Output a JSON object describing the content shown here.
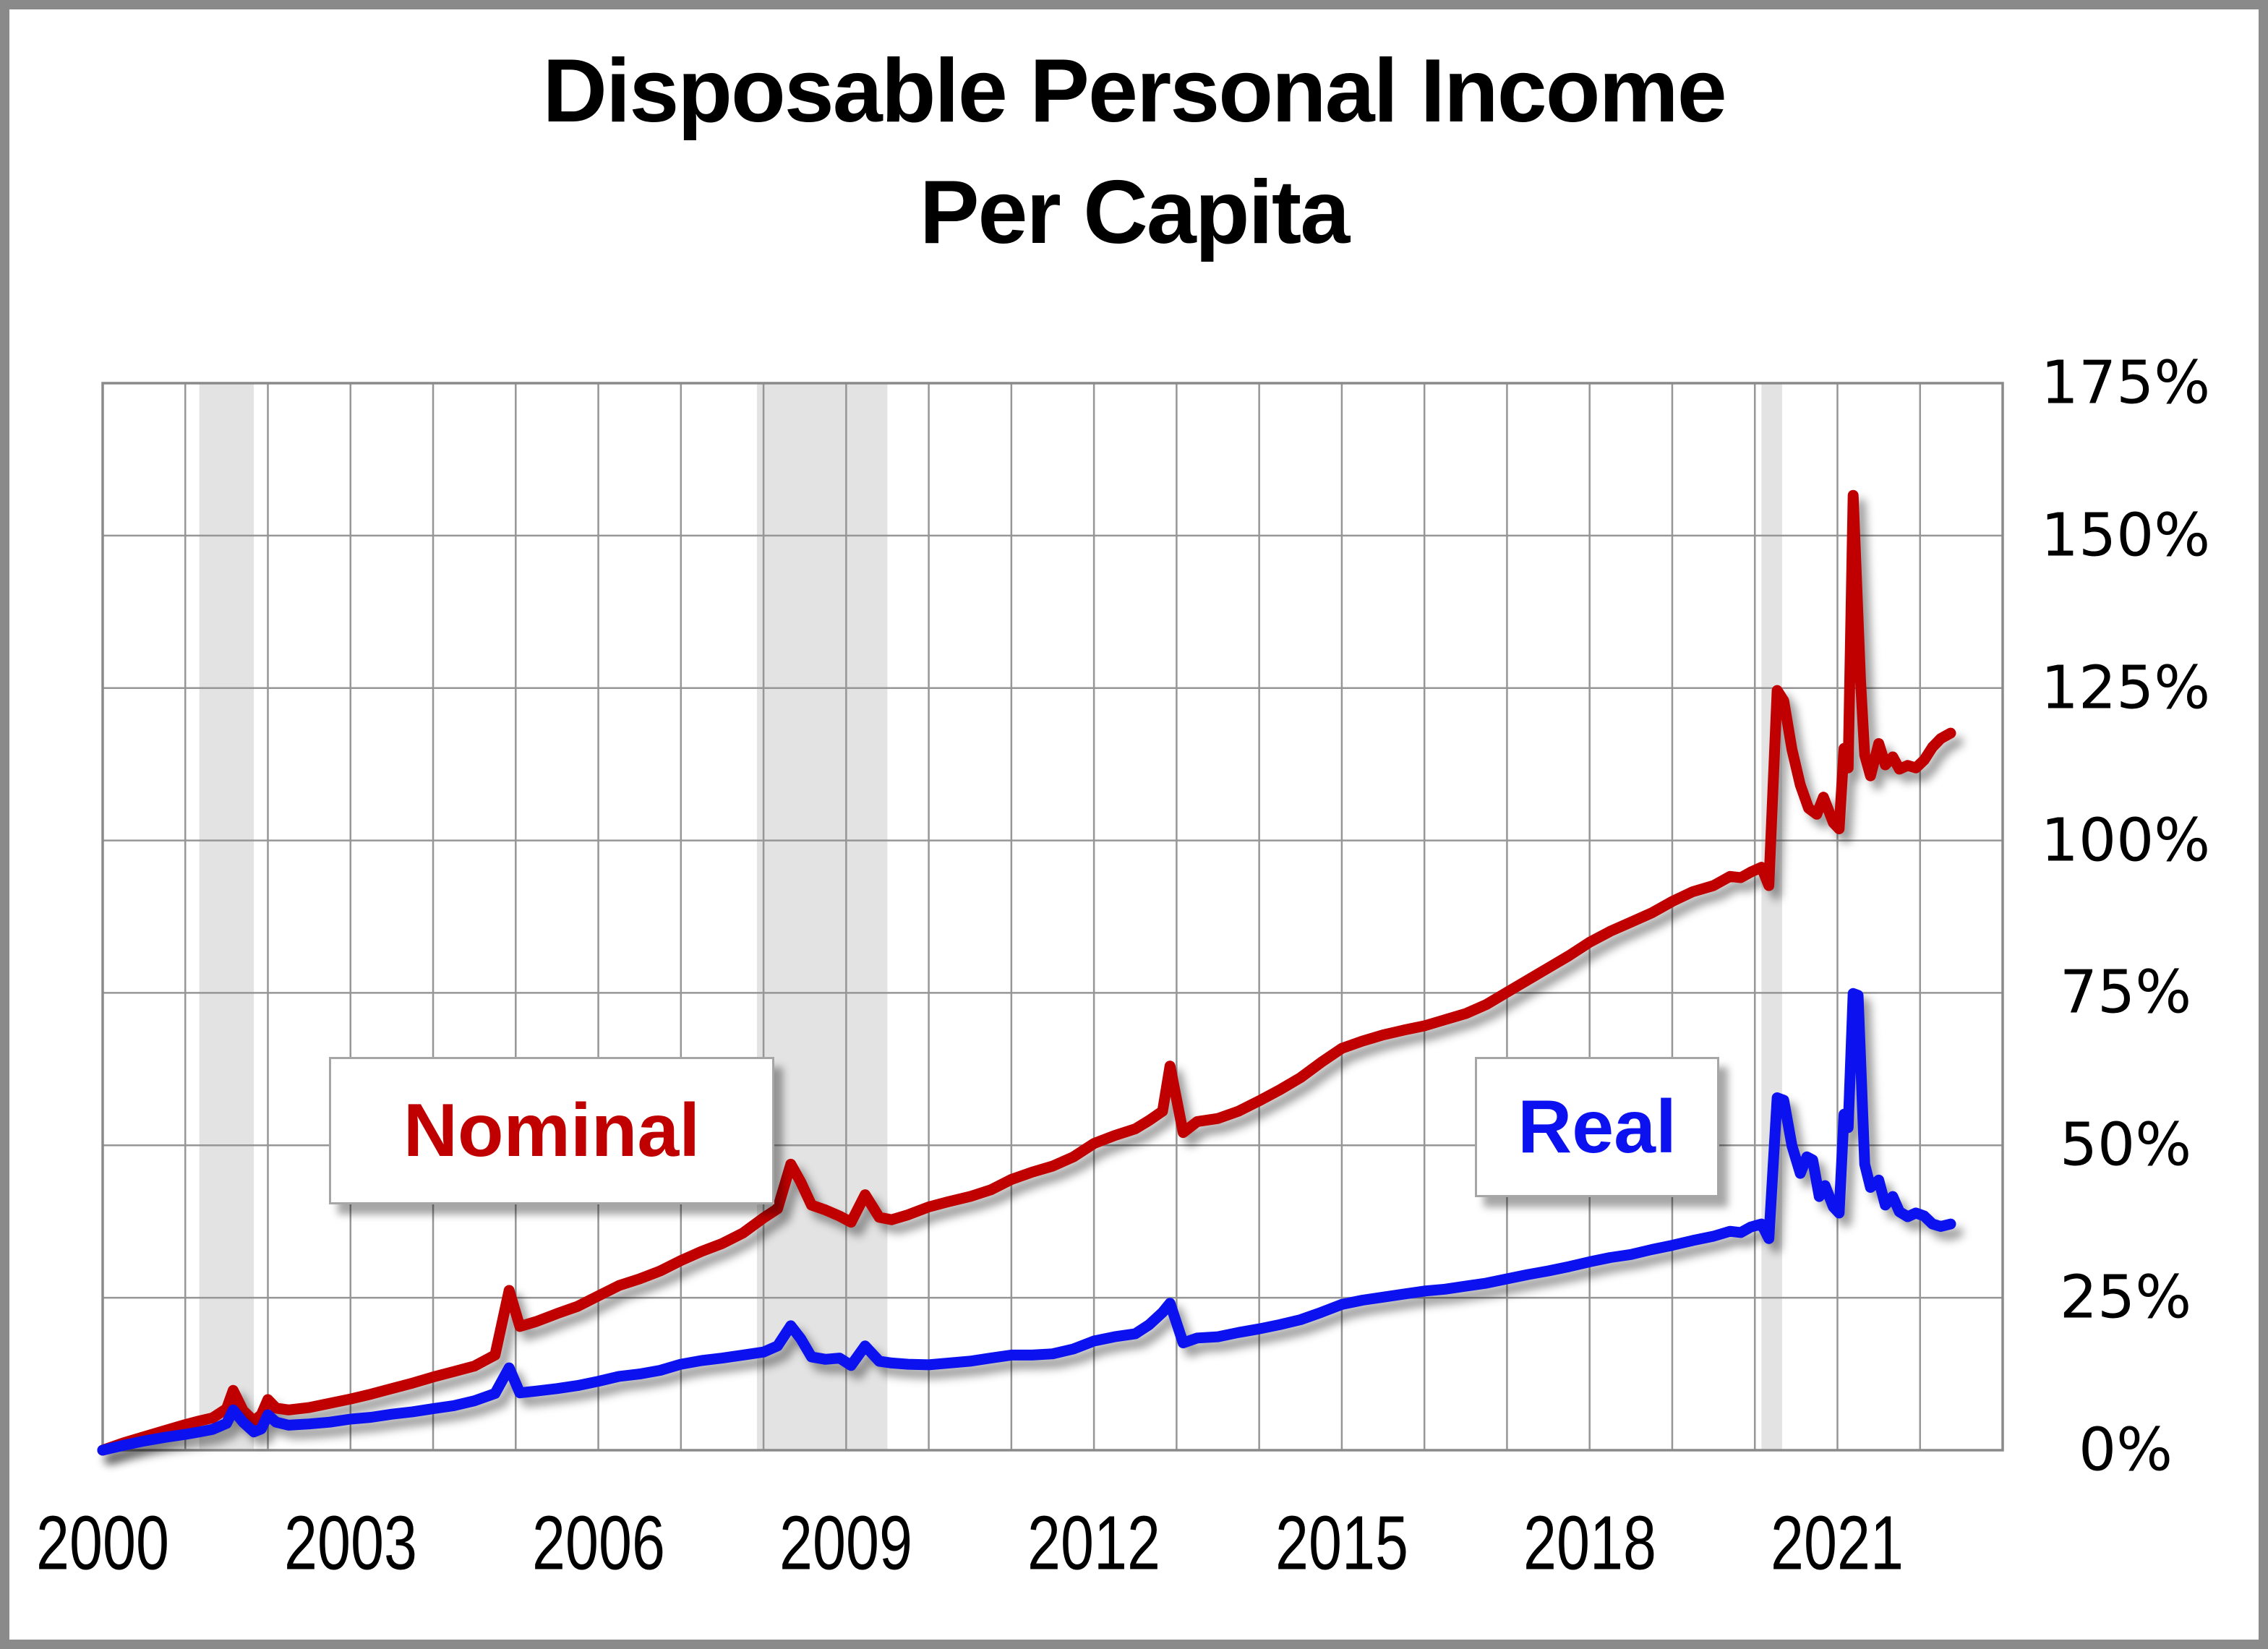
{
  "title": {
    "line1": "Disposable Personal Income",
    "line2": "Per Capita"
  },
  "annotations": {
    "nominal_label": "Nominal",
    "real_label": "Real"
  },
  "colors": {
    "nominal": "#c00000",
    "real": "#0c12ef",
    "grid": "#969696",
    "plot_border": "#8a8a8a",
    "recession_band": "#e3e3e3",
    "frame": "#8a8a8a",
    "title_text": "#000000",
    "tick_text": "#000000"
  },
  "chart_data": {
    "type": "line",
    "title": "Disposable Personal Income Per Capita",
    "xlabel": "",
    "ylabel": "",
    "xlim": [
      2000,
      2023
    ],
    "ylim": [
      0,
      175
    ],
    "grid": "on",
    "grid_x_step": 1,
    "grid_y_step": 25,
    "x_ticks": [
      {
        "value": 2000,
        "label": "2000"
      },
      {
        "value": 2003,
        "label": "2003"
      },
      {
        "value": 2006,
        "label": "2006"
      },
      {
        "value": 2009,
        "label": "2009"
      },
      {
        "value": 2012,
        "label": "2012"
      },
      {
        "value": 2015,
        "label": "2015"
      },
      {
        "value": 2018,
        "label": "2018"
      },
      {
        "value": 2021,
        "label": "2021"
      }
    ],
    "y_ticks": [
      {
        "value": 0,
        "label": "0%"
      },
      {
        "value": 25,
        "label": "25%"
      },
      {
        "value": 50,
        "label": "50%"
      },
      {
        "value": 75,
        "label": "75%"
      },
      {
        "value": 100,
        "label": "100%"
      },
      {
        "value": 125,
        "label": "125%"
      },
      {
        "value": 150,
        "label": "150%"
      },
      {
        "value": 175,
        "label": "175%"
      }
    ],
    "recession_bands": [
      [
        2001.17,
        2001.83
      ],
      [
        2007.92,
        2009.5
      ],
      [
        2020.08,
        2020.33
      ]
    ],
    "series": [
      {
        "name": "Nominal",
        "color_key": "nominal",
        "points": [
          [
            2000,
            0
          ],
          [
            2000.25,
            1.2
          ],
          [
            2000.5,
            2.2
          ],
          [
            2000.75,
            3.2
          ],
          [
            2001,
            4.2
          ],
          [
            2001.17,
            4.8
          ],
          [
            2001.33,
            5.3
          ],
          [
            2001.5,
            6.8
          ],
          [
            2001.58,
            9.8
          ],
          [
            2001.7,
            6.5
          ],
          [
            2001.83,
            4.8
          ],
          [
            2001.92,
            5.8
          ],
          [
            2002,
            8.3
          ],
          [
            2002.1,
            6.9
          ],
          [
            2002.25,
            6.6
          ],
          [
            2002.5,
            7.0
          ],
          [
            2002.75,
            7.7
          ],
          [
            2003,
            8.4
          ],
          [
            2003.25,
            9.2
          ],
          [
            2003.5,
            10.1
          ],
          [
            2003.75,
            11.0
          ],
          [
            2004,
            12.0
          ],
          [
            2004.25,
            12.9
          ],
          [
            2004.5,
            13.8
          ],
          [
            2004.75,
            15.6
          ],
          [
            2004.92,
            26.2
          ],
          [
            2005.05,
            20.3
          ],
          [
            2005.25,
            21.1
          ],
          [
            2005.5,
            22.4
          ],
          [
            2005.75,
            23.6
          ],
          [
            2006,
            25.3
          ],
          [
            2006.25,
            27.0
          ],
          [
            2006.5,
            28.1
          ],
          [
            2006.75,
            29.4
          ],
          [
            2007,
            31.1
          ],
          [
            2007.25,
            32.6
          ],
          [
            2007.5,
            33.9
          ],
          [
            2007.75,
            35.6
          ],
          [
            2008,
            38.1
          ],
          [
            2008.17,
            39.6
          ],
          [
            2008.33,
            46.9
          ],
          [
            2008.45,
            44.0
          ],
          [
            2008.58,
            40.2
          ],
          [
            2008.75,
            39.4
          ],
          [
            2008.92,
            38.4
          ],
          [
            2009.06,
            37.4
          ],
          [
            2009.23,
            41.9
          ],
          [
            2009.4,
            38.2
          ],
          [
            2009.55,
            37.8
          ],
          [
            2009.75,
            38.6
          ],
          [
            2010,
            39.9
          ],
          [
            2010.25,
            40.8
          ],
          [
            2010.5,
            41.6
          ],
          [
            2010.75,
            42.7
          ],
          [
            2011,
            44.4
          ],
          [
            2011.25,
            45.6
          ],
          [
            2011.5,
            46.6
          ],
          [
            2011.75,
            48.1
          ],
          [
            2012,
            50.3
          ],
          [
            2012.25,
            51.6
          ],
          [
            2012.5,
            52.7
          ],
          [
            2012.67,
            54.1
          ],
          [
            2012.83,
            55.6
          ],
          [
            2012.92,
            63.0
          ],
          [
            2013.08,
            52.1
          ],
          [
            2013.25,
            53.9
          ],
          [
            2013.5,
            54.4
          ],
          [
            2013.75,
            55.6
          ],
          [
            2014,
            57.3
          ],
          [
            2014.25,
            59.1
          ],
          [
            2014.5,
            61.1
          ],
          [
            2014.75,
            63.6
          ],
          [
            2015,
            65.9
          ],
          [
            2015.25,
            67.1
          ],
          [
            2015.5,
            68.1
          ],
          [
            2015.75,
            68.9
          ],
          [
            2016,
            69.6
          ],
          [
            2016.25,
            70.6
          ],
          [
            2016.5,
            71.6
          ],
          [
            2016.75,
            73.1
          ],
          [
            2017,
            75.1
          ],
          [
            2017.25,
            77.1
          ],
          [
            2017.5,
            79.1
          ],
          [
            2017.75,
            81.1
          ],
          [
            2018,
            83.3
          ],
          [
            2018.25,
            85.1
          ],
          [
            2018.5,
            86.6
          ],
          [
            2018.75,
            88.1
          ],
          [
            2019,
            90.0
          ],
          [
            2019.25,
            91.6
          ],
          [
            2019.5,
            92.6
          ],
          [
            2019.7,
            94.1
          ],
          [
            2019.83,
            93.9
          ],
          [
            2019.95,
            94.8
          ],
          [
            2020.08,
            95.6
          ],
          [
            2020.17,
            92.6
          ],
          [
            2020.27,
            124.6
          ],
          [
            2020.35,
            122.9
          ],
          [
            2020.45,
            114.9
          ],
          [
            2020.55,
            109.1
          ],
          [
            2020.65,
            105.3
          ],
          [
            2020.75,
            104.3
          ],
          [
            2020.83,
            107.1
          ],
          [
            2020.95,
            102.9
          ],
          [
            2021.02,
            101.9
          ],
          [
            2021.08,
            115.1
          ],
          [
            2021.13,
            111.9
          ],
          [
            2021.19,
            156.6
          ],
          [
            2021.28,
            126.0
          ],
          [
            2021.33,
            114.0
          ],
          [
            2021.4,
            110.6
          ],
          [
            2021.5,
            115.9
          ],
          [
            2021.58,
            112.4
          ],
          [
            2021.67,
            113.7
          ],
          [
            2021.75,
            111.7
          ],
          [
            2021.85,
            112.3
          ],
          [
            2021.95,
            111.9
          ],
          [
            2022.05,
            113.2
          ],
          [
            2022.15,
            115.3
          ],
          [
            2022.25,
            116.7
          ],
          [
            2022.37,
            117.6
          ]
        ]
      },
      {
        "name": "Real",
        "color_key": "real",
        "points": [
          [
            2000,
            0
          ],
          [
            2000.25,
            0.8
          ],
          [
            2000.5,
            1.5
          ],
          [
            2000.75,
            2.1
          ],
          [
            2001,
            2.6
          ],
          [
            2001.17,
            3.0
          ],
          [
            2001.33,
            3.4
          ],
          [
            2001.5,
            4.4
          ],
          [
            2001.58,
            6.6
          ],
          [
            2001.7,
            4.6
          ],
          [
            2001.83,
            3.0
          ],
          [
            2001.92,
            3.5
          ],
          [
            2002,
            5.8
          ],
          [
            2002.1,
            4.6
          ],
          [
            2002.25,
            4.1
          ],
          [
            2002.5,
            4.3
          ],
          [
            2002.75,
            4.6
          ],
          [
            2003,
            5.1
          ],
          [
            2003.25,
            5.4
          ],
          [
            2003.5,
            5.9
          ],
          [
            2003.75,
            6.3
          ],
          [
            2004,
            6.8
          ],
          [
            2004.25,
            7.3
          ],
          [
            2004.5,
            8.1
          ],
          [
            2004.75,
            9.3
          ],
          [
            2004.92,
            13.5
          ],
          [
            2005.05,
            9.4
          ],
          [
            2005.25,
            9.7
          ],
          [
            2005.5,
            10.1
          ],
          [
            2005.75,
            10.6
          ],
          [
            2006,
            11.3
          ],
          [
            2006.25,
            12.1
          ],
          [
            2006.5,
            12.5
          ],
          [
            2006.75,
            13.1
          ],
          [
            2007,
            14.1
          ],
          [
            2007.25,
            14.7
          ],
          [
            2007.5,
            15.1
          ],
          [
            2007.75,
            15.6
          ],
          [
            2008,
            16.1
          ],
          [
            2008.17,
            17.1
          ],
          [
            2008.33,
            20.4
          ],
          [
            2008.45,
            18.3
          ],
          [
            2008.58,
            15.3
          ],
          [
            2008.75,
            14.9
          ],
          [
            2008.92,
            15.1
          ],
          [
            2009.06,
            13.9
          ],
          [
            2009.23,
            17.1
          ],
          [
            2009.4,
            14.6
          ],
          [
            2009.55,
            14.3
          ],
          [
            2009.75,
            14.1
          ],
          [
            2010,
            14.0
          ],
          [
            2010.25,
            14.3
          ],
          [
            2010.5,
            14.6
          ],
          [
            2010.75,
            15.1
          ],
          [
            2011,
            15.6
          ],
          [
            2011.25,
            15.6
          ],
          [
            2011.5,
            15.8
          ],
          [
            2011.75,
            16.6
          ],
          [
            2012,
            17.9
          ],
          [
            2012.25,
            18.6
          ],
          [
            2012.5,
            19.1
          ],
          [
            2012.67,
            20.6
          ],
          [
            2012.83,
            22.6
          ],
          [
            2012.92,
            24.1
          ],
          [
            2013.08,
            17.6
          ],
          [
            2013.25,
            18.4
          ],
          [
            2013.5,
            18.6
          ],
          [
            2013.75,
            19.3
          ],
          [
            2014,
            19.9
          ],
          [
            2014.25,
            20.6
          ],
          [
            2014.5,
            21.4
          ],
          [
            2014.75,
            22.6
          ],
          [
            2015,
            23.9
          ],
          [
            2015.25,
            24.6
          ],
          [
            2015.5,
            25.1
          ],
          [
            2015.75,
            25.6
          ],
          [
            2016,
            26.1
          ],
          [
            2016.25,
            26.4
          ],
          [
            2016.5,
            26.9
          ],
          [
            2016.75,
            27.4
          ],
          [
            2017,
            28.1
          ],
          [
            2017.25,
            28.8
          ],
          [
            2017.5,
            29.4
          ],
          [
            2017.75,
            30.1
          ],
          [
            2018,
            30.9
          ],
          [
            2018.25,
            31.6
          ],
          [
            2018.5,
            32.1
          ],
          [
            2018.75,
            32.9
          ],
          [
            2019,
            33.6
          ],
          [
            2019.25,
            34.4
          ],
          [
            2019.5,
            35.1
          ],
          [
            2019.7,
            35.9
          ],
          [
            2019.83,
            35.7
          ],
          [
            2019.95,
            36.6
          ],
          [
            2020.08,
            37.1
          ],
          [
            2020.17,
            34.7
          ],
          [
            2020.27,
            57.8
          ],
          [
            2020.35,
            57.4
          ],
          [
            2020.45,
            49.9
          ],
          [
            2020.55,
            45.4
          ],
          [
            2020.63,
            48.1
          ],
          [
            2020.7,
            47.6
          ],
          [
            2020.78,
            41.6
          ],
          [
            2020.85,
            43.4
          ],
          [
            2020.95,
            39.9
          ],
          [
            2021.02,
            38.9
          ],
          [
            2021.08,
            55.1
          ],
          [
            2021.13,
            52.9
          ],
          [
            2021.19,
            74.9
          ],
          [
            2021.25,
            74.6
          ],
          [
            2021.33,
            46.9
          ],
          [
            2021.4,
            43.1
          ],
          [
            2021.5,
            44.3
          ],
          [
            2021.58,
            40.2
          ],
          [
            2021.67,
            41.6
          ],
          [
            2021.75,
            39.1
          ],
          [
            2021.85,
            38.3
          ],
          [
            2021.95,
            38.9
          ],
          [
            2022.05,
            38.4
          ],
          [
            2022.15,
            37.1
          ],
          [
            2022.25,
            36.7
          ],
          [
            2022.37,
            37.1
          ]
        ]
      }
    ]
  }
}
